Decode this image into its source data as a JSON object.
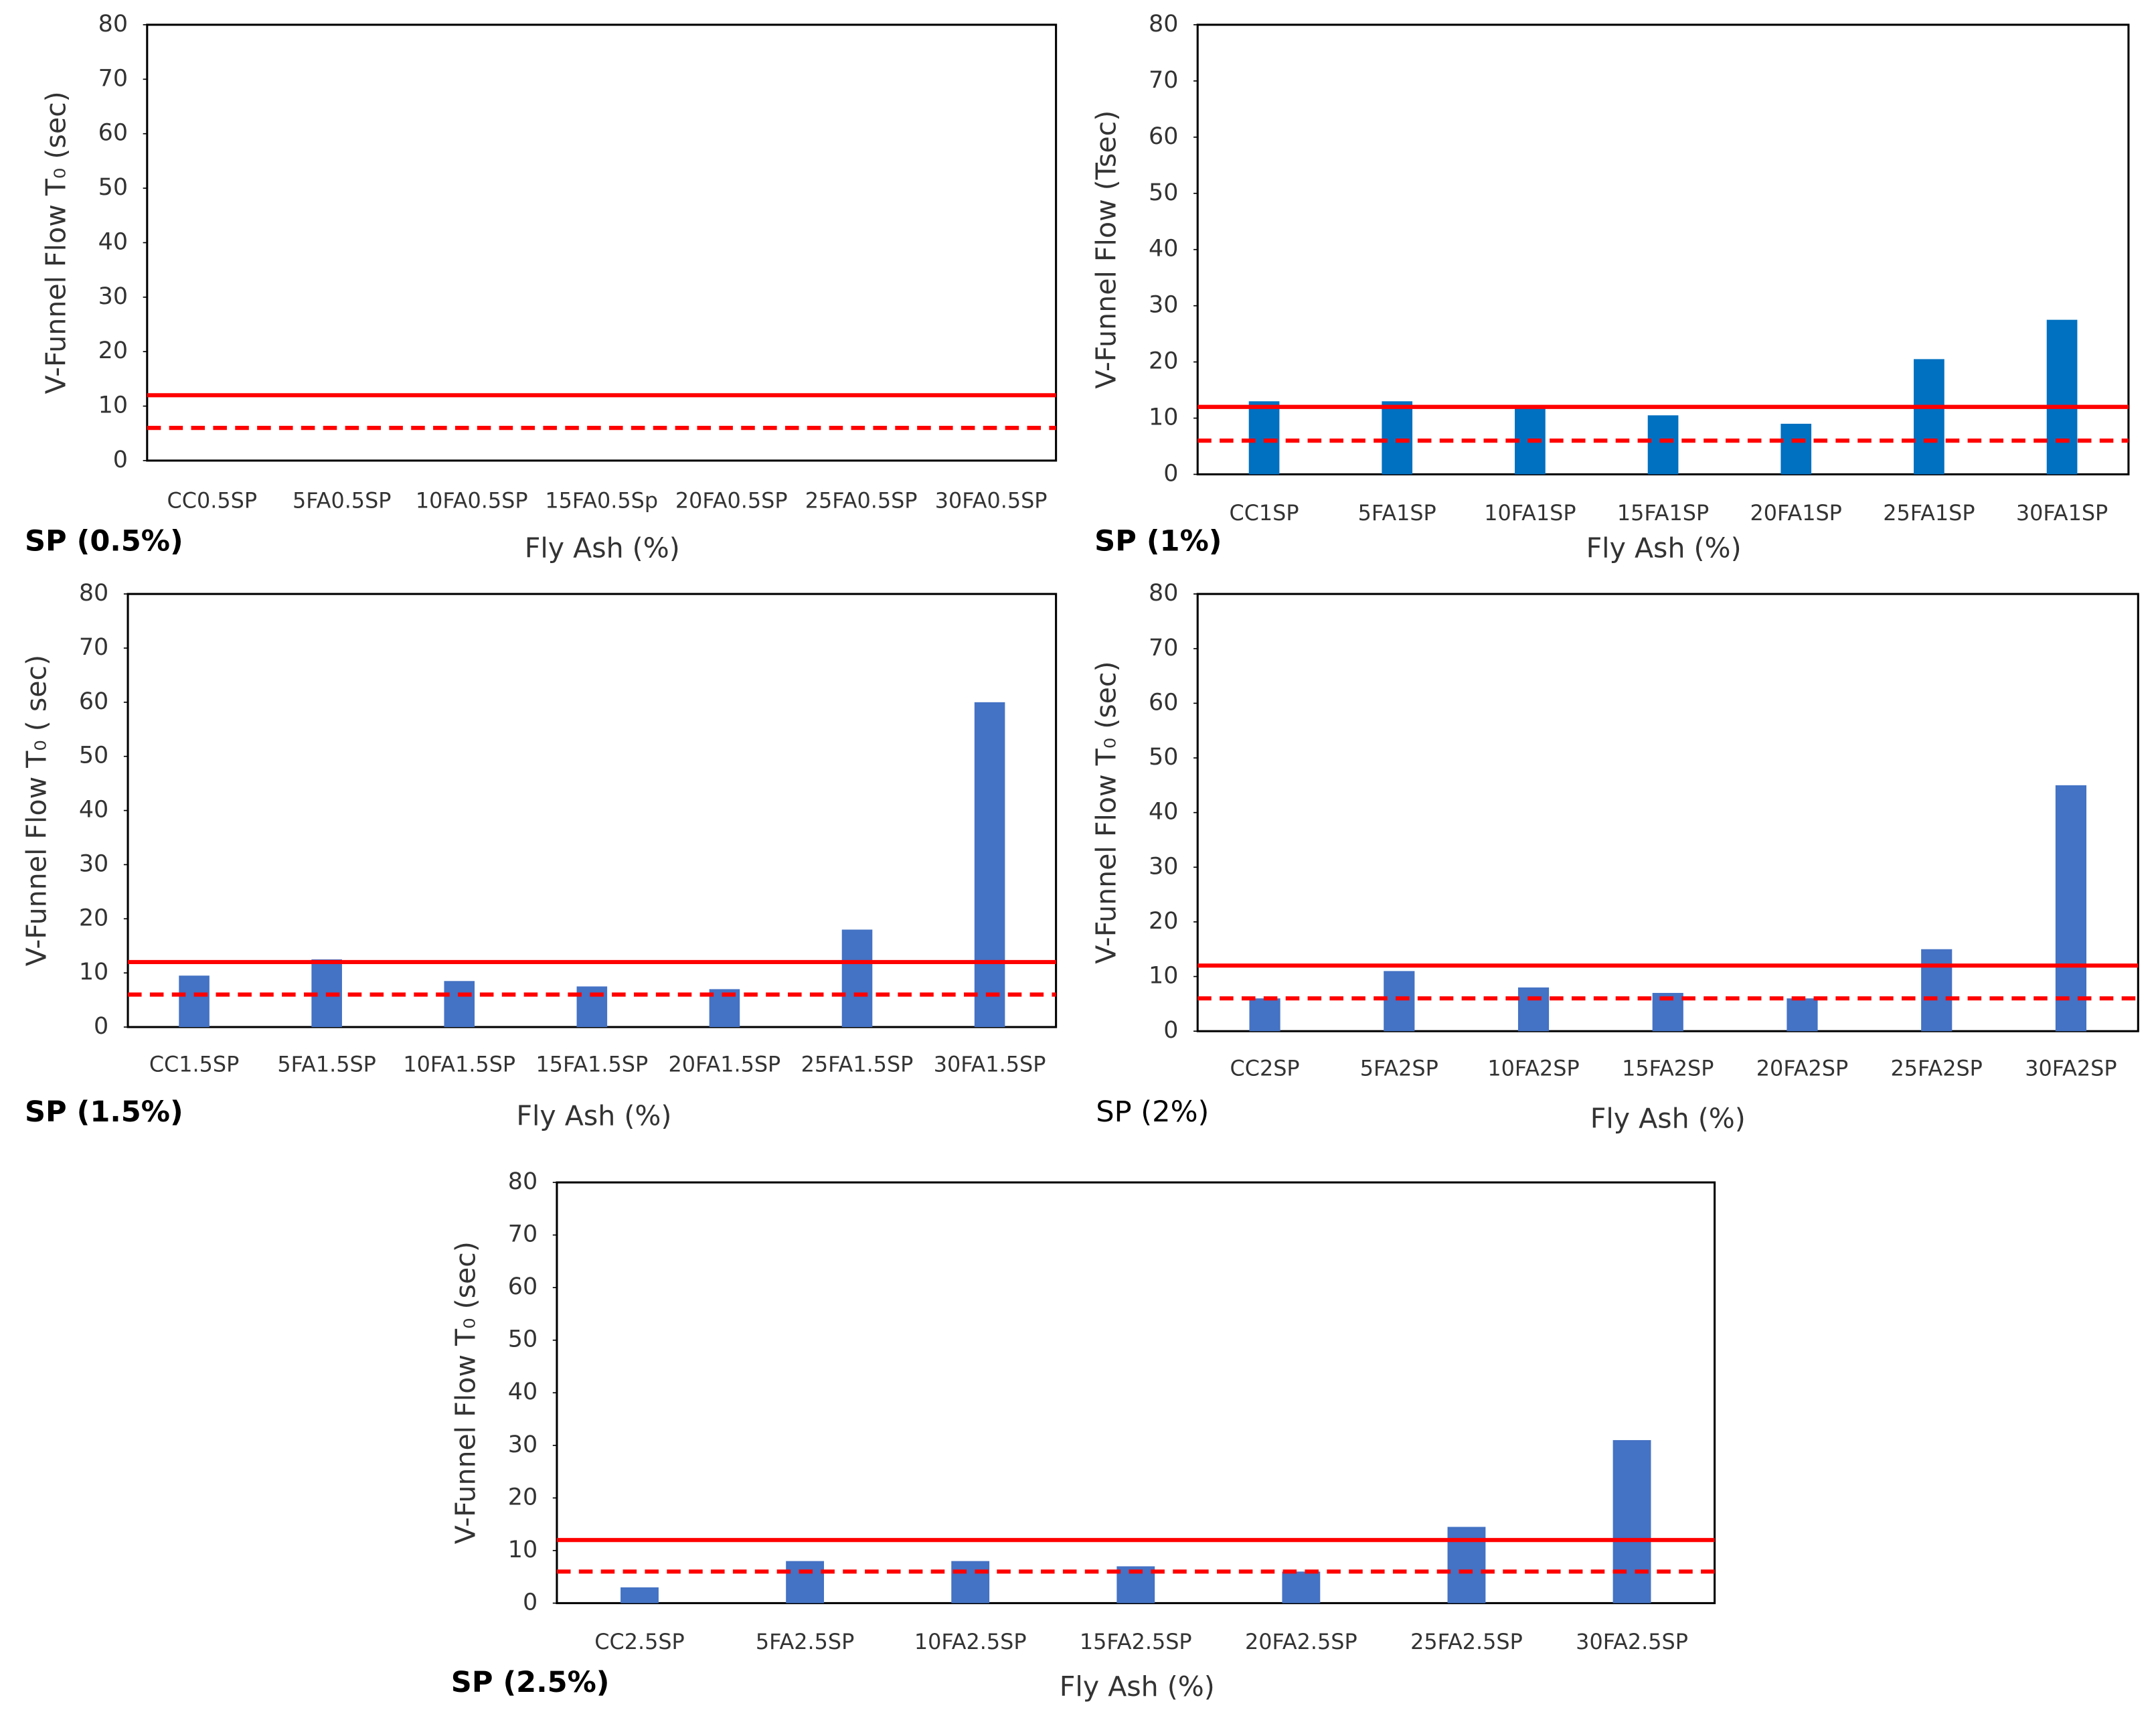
{
  "chart_data": [
    {
      "type": "bar",
      "title": "SP (0.5%)",
      "title_bold": true,
      "y_label": "V-Funnel Flow T₀ (sec)",
      "x_label": "Fly Ash (%)",
      "categories": [
        "CC0.5SP",
        "5FA0.5SP",
        "10FA0.5SP",
        "15FA0.5Sp",
        "20FA0.5SP",
        "25FA0.5SP",
        "30FA0.5SP"
      ],
      "color": "#4472c4",
      "ylim": [
        0,
        80
      ],
      "yticks": [
        0,
        10,
        20,
        30,
        40,
        50,
        60,
        70,
        80
      ],
      "reference_lines": [
        {
          "value": 12,
          "style": "solid",
          "color": "#ff0000"
        },
        {
          "value": 6,
          "style": "dashed",
          "color": "#ff0000"
        }
      ]
    },
    {
      "type": "bar",
      "title": "SP (1%)",
      "title_bold": true,
      "y_label": "V-Funnel Flow (Tsec)",
      "x_label": "Fly Ash (%)",
      "categories": [
        "CC1SP",
        "5FA1SP",
        "10FA1SP",
        "15FA1SP",
        "20FA1SP",
        "25FA1SP",
        "30FA1SP"
      ],
      "values": [
        13,
        13,
        12,
        10.5,
        9,
        20.5,
        27.5
      ],
      "color": "#0070c0",
      "ylim": [
        0,
        80
      ],
      "yticks": [
        0,
        10,
        20,
        30,
        40,
        50,
        60,
        70,
        80
      ],
      "reference_lines": [
        {
          "value": 12,
          "style": "solid",
          "color": "#ff0000"
        },
        {
          "value": 6,
          "style": "dashed",
          "color": "#ff0000"
        }
      ]
    },
    {
      "type": "bar",
      "title": "SP (1.5%)",
      "title_bold": true,
      "y_label": "V-Funnel Flow T₀ ( sec)",
      "x_label": "Fly Ash (%)",
      "categories": [
        "CC1.5SP",
        "5FA1.5SP",
        "10FA1.5SP",
        "15FA1.5SP",
        "20FA1.5SP",
        "25FA1.5SP",
        "30FA1.5SP"
      ],
      "values": [
        9.5,
        12.5,
        8.5,
        7.5,
        7,
        18,
        60
      ],
      "color": "#4472c4",
      "ylim": [
        0,
        80
      ],
      "yticks": [
        0,
        10,
        20,
        30,
        40,
        50,
        60,
        70,
        80
      ],
      "reference_lines": [
        {
          "value": 12,
          "style": "solid",
          "color": "#ff0000"
        },
        {
          "value": 6,
          "style": "dashed",
          "color": "#ff0000"
        }
      ]
    },
    {
      "type": "bar",
      "title": "SP (2%)",
      "title_bold": false,
      "y_label": "V-Funnel Flow T₀ (sec)",
      "x_label": "Fly Ash (%)",
      "categories": [
        "CC2SP",
        "5FA2SP",
        "10FA2SP",
        "15FA2SP",
        "20FA2SP",
        "25FA2SP",
        "30FA2SP"
      ],
      "values": [
        6,
        11,
        8,
        7,
        6,
        15,
        45
      ],
      "color": "#4472c4",
      "ylim": [
        0,
        80
      ],
      "yticks": [
        0,
        10,
        20,
        30,
        40,
        50,
        60,
        70,
        80
      ],
      "reference_lines": [
        {
          "value": 12,
          "style": "solid",
          "color": "#ff0000"
        },
        {
          "value": 6,
          "style": "dashed",
          "color": "#ff0000"
        }
      ]
    },
    {
      "type": "bar",
      "title": "SP (2.5%)",
      "title_bold": true,
      "y_label": "V-Funnel Flow T₀ (sec)",
      "x_label": "Fly Ash (%)",
      "categories": [
        "CC2.5SP",
        "5FA2.5SP",
        "10FA2.5SP",
        "15FA2.5SP",
        "20FA2.5SP",
        "25FA2.5SP",
        "30FA2.5SP"
      ],
      "values": [
        3,
        8,
        8,
        7,
        6,
        14.5,
        31
      ],
      "color": "#4472c4",
      "ylim": [
        0,
        80
      ],
      "yticks": [
        0,
        10,
        20,
        30,
        40,
        50,
        60,
        70,
        80
      ],
      "reference_lines": [
        {
          "value": 12,
          "style": "solid",
          "color": "#ff0000"
        },
        {
          "value": 6,
          "style": "dashed",
          "color": "#ff0000"
        }
      ]
    }
  ]
}
